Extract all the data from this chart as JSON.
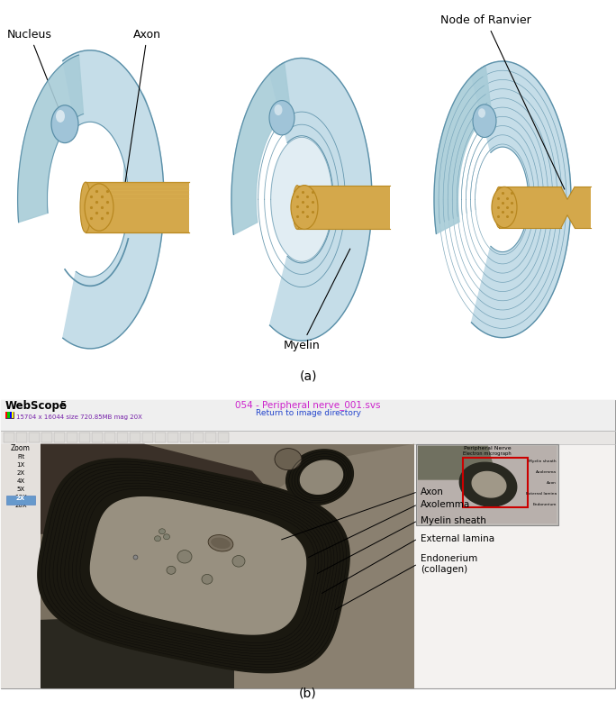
{
  "label_a": "(a)",
  "label_b": "(b)",
  "top_labels": {
    "nucleus": "Nucleus",
    "axon": "Axon",
    "node_of_ranvier": "Node of Ranvier",
    "myelin": "Myelin"
  },
  "bottom_labels": {
    "axon": "Axon",
    "axolemma": "Axolemma",
    "myelin_sheath": "Myelin sheath",
    "external_lamina": "External lamina",
    "endonerium": "Endonerium\n(collagen)"
  },
  "webscope_title": "054 - Peripheral nerve_001.svs",
  "webscope_subtitle": "Return to image directory",
  "webscope_brand": "WebScope",
  "webscope_brand2": "5",
  "webscope_info": "15704 x 16044 size 720.85MB mag 20X",
  "cell_blue_light": "#c5dde8",
  "cell_blue_mid": "#a8ccd8",
  "cell_blue_dark": "#7ab0c4",
  "cell_blue_edge": "#5a8fa8",
  "axon_gold": "#d4a84b",
  "axon_gold_dark": "#b88820",
  "axon_gold_light": "#e8c060",
  "nucleus_blue": "#a0c4d8",
  "nucleus_dark": "#7aaabb",
  "background_color": "#ffffff"
}
